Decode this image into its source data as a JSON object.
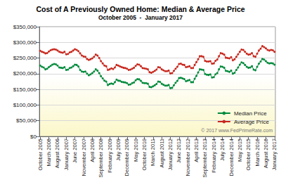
{
  "chart_data": {
    "type": "line",
    "title": "Cost of A Previously Owned Home: Median & Average Price",
    "subtitle": "October 2005  -  January 2017",
    "annotations": [
      "© 2017 www.FedPrimeRate.com"
    ],
    "categories": [
      "October 2005",
      null,
      null,
      null,
      null,
      "March 2006",
      null,
      null,
      null,
      null,
      "August 2006",
      null,
      null,
      null,
      null,
      "January 2007",
      null,
      null,
      null,
      null,
      "June 2007",
      null,
      null,
      null,
      null,
      "November 2007",
      null,
      null,
      null,
      null,
      "April 2008",
      null,
      null,
      null,
      null,
      "September 2008",
      null,
      null,
      null,
      null,
      "February 2009",
      null,
      null,
      null,
      null,
      "July 2009",
      null,
      null,
      null,
      null,
      "December 2009",
      null,
      null,
      null,
      null,
      "May 2010",
      null,
      null,
      null,
      null,
      "October 2010",
      null,
      null,
      null,
      null,
      "March 2011",
      null,
      null,
      null,
      null,
      "August 2011",
      null,
      null,
      null,
      null,
      "January 2012",
      null,
      null,
      null,
      null,
      "June 2012",
      null,
      null,
      null,
      null,
      "November 2012",
      null,
      null,
      null,
      null,
      "April 2013",
      null,
      null,
      null,
      null,
      "September 2013",
      null,
      null,
      null,
      null,
      "February 2014",
      null,
      null,
      null,
      null,
      "July 2014",
      null,
      null,
      null,
      null,
      "December 2014",
      null,
      null,
      null,
      null,
      "May 2015",
      null,
      null,
      null,
      null,
      "October 2015",
      null,
      null,
      null,
      null,
      "March 2016",
      null,
      null,
      null,
      null,
      "August 2016",
      null,
      null,
      null,
      null,
      "January 2017"
    ],
    "series": [
      {
        "name": "Median Price",
        "color": "#008a3c",
        "marker": "circle",
        "values": [
          226000,
          222000,
          220000,
          214000,
          216000,
          221000,
          225000,
          229000,
          231000,
          230000,
          226000,
          220000,
          219000,
          218000,
          221000,
          212000,
          213000,
          218000,
          220000,
          224000,
          229000,
          228000,
          223000,
          212000,
          207000,
          206000,
          207000,
          200000,
          195000,
          198000,
          202000,
          207000,
          214000,
          210000,
          202000,
          192000,
          185000,
          178000,
          175000,
          164000,
          167000,
          169000,
          167000,
          173000,
          181000,
          178000,
          177000,
          174000,
          173000,
          172000,
          170000,
          165000,
          166000,
          170000,
          172000,
          179000,
          183000,
          182000,
          177000,
          171000,
          170000,
          170000,
          168000,
          158000,
          157000,
          160000,
          163000,
          167000,
          175000,
          174000,
          168000,
          165000,
          162000,
          162000,
          164000,
          154000,
          155000,
          163000,
          171000,
          177000,
          186000,
          187000,
          185000,
          183000,
          176000,
          178000,
          180000,
          173000,
          173000,
          184000,
          193000,
          204000,
          214000,
          213000,
          212000,
          199000,
          197000,
          196000,
          198000,
          188000,
          189000,
          198000,
          202000,
          214000,
          223000,
          222000,
          219000,
          209000,
          208000,
          206000,
          210000,
          200000,
          203000,
          212000,
          220000,
          229000,
          236000,
          234000,
          228000,
          222000,
          219000,
          220000,
          224000,
          213000,
          211000,
          222000,
          232000,
          239000,
          247000,
          245000,
          240000,
          235000,
          233000,
          234000,
          233000,
          229000
        ]
      },
      {
        "name": "Average Price",
        "color": "#c8281e",
        "marker": "circle",
        "values": [
          273000,
          270000,
          268000,
          265000,
          266000,
          271000,
          275000,
          277000,
          278000,
          277000,
          274000,
          270000,
          268000,
          267000,
          270000,
          262000,
          263000,
          268000,
          270000,
          274000,
          278000,
          276000,
          272000,
          265000,
          258000,
          255000,
          254000,
          247000,
          244000,
          246000,
          249000,
          254000,
          261000,
          258000,
          250000,
          240000,
          233000,
          226000,
          224000,
          212000,
          214000,
          217000,
          215000,
          220000,
          228000,
          226000,
          223000,
          221000,
          219000,
          218000,
          216000,
          212000,
          213000,
          216000,
          219000,
          225000,
          230000,
          229000,
          224000,
          218000,
          217000,
          216000,
          214000,
          205000,
          203000,
          206000,
          209000,
          213000,
          221000,
          220000,
          214000,
          211000,
          208000,
          208000,
          210000,
          201000,
          202000,
          209000,
          216000,
          222000,
          231000,
          232000,
          229000,
          228000,
          221000,
          222000,
          224000,
          218000,
          218000,
          228000,
          237000,
          246000,
          256000,
          256000,
          254000,
          241000,
          239000,
          239000,
          240000,
          232000,
          233000,
          241000,
          245000,
          256000,
          266000,
          264000,
          261000,
          251000,
          250000,
          249000,
          253000,
          243000,
          246000,
          254000,
          262000,
          270000,
          277000,
          276000,
          270000,
          264000,
          261000,
          262000,
          266000,
          256000,
          254000,
          264000,
          274000,
          280000,
          288000,
          285000,
          281000,
          276000,
          274000,
          276000,
          275000,
          270000
        ]
      }
    ],
    "ylim": [
      0,
      350000
    ],
    "yticks": [
      {
        "value": 0,
        "label": "$0"
      },
      {
        "value": 50000,
        "label": "$50,000"
      },
      {
        "value": 100000,
        "label": "$100,000"
      },
      {
        "value": 150000,
        "label": "$150,000"
      },
      {
        "value": 200000,
        "label": "$200,000"
      },
      {
        "value": 250000,
        "label": "$250,000"
      },
      {
        "value": 300000,
        "label": "$300,000"
      },
      {
        "value": 350000,
        "label": "$350,000"
      }
    ],
    "grid": true,
    "legend": "right"
  }
}
